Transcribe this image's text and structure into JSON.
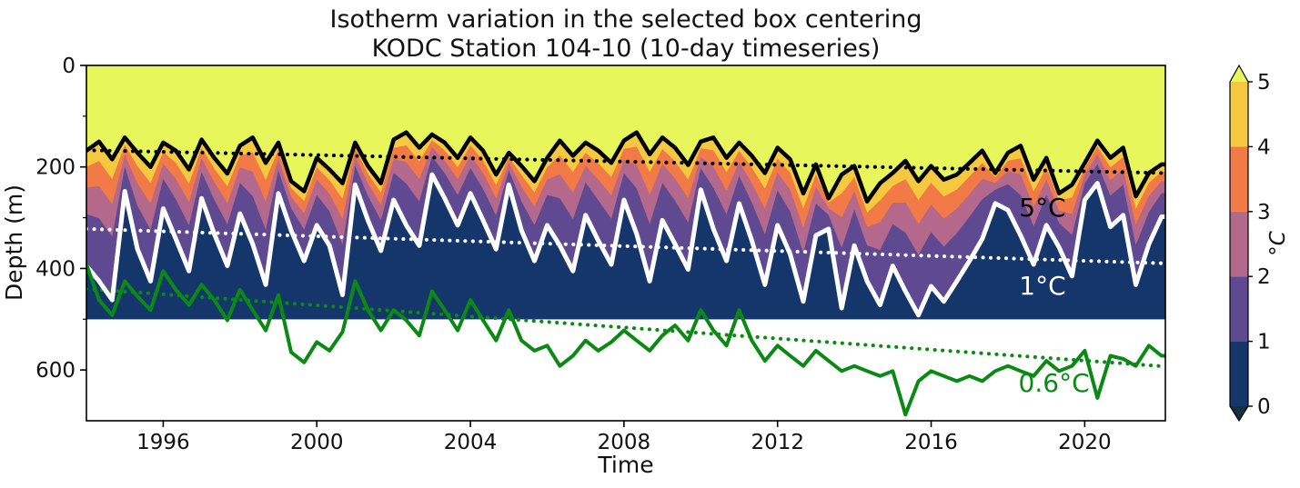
{
  "figure": {
    "background": "#ffffff"
  },
  "chart_data": {
    "type": "area",
    "subtype": "filled-contour-isotherm-timeseries",
    "title": "Isotherm variation in the selected box centering\nKODC Station 104-10 (10-day timeseries)",
    "title_lines": [
      "Isotherm variation in the selected box centering",
      "KODC Station 104-10 (10-day timeseries)"
    ],
    "xlabel": "Time",
    "ylabel": "Depth (m)",
    "xlim": [
      1994.0,
      2022.1
    ],
    "ylim": [
      700,
      0
    ],
    "y_axis_inverted": true,
    "xticks": [
      1996,
      2000,
      2004,
      2008,
      2012,
      2016,
      2020
    ],
    "yticks": [
      0,
      200,
      400,
      600
    ],
    "yticks_minor": [
      100,
      300,
      500
    ],
    "grid": false,
    "data_bottom_depth": 500,
    "colorbar": {
      "unit_label": "°C",
      "ticks": [
        0,
        1,
        2,
        3,
        4,
        5
      ],
      "extend": "both",
      "segment_colors_low_to_high": [
        "#14366a",
        "#5f4a92",
        "#b4688b",
        "#f27a46",
        "#f4c93f"
      ],
      "under_color": "#15303f",
      "over_color": "#e6f65b"
    },
    "colors": {
      "over_5C": "#e6f65b",
      "band_4_5": "#f4c93f",
      "band_3_4": "#f27a46",
      "band_2_3": "#b4688b",
      "band_1_2": "#5f4a92",
      "band_0_1": "#14366a",
      "under_0": "#15303f",
      "iso5_line": "#000000",
      "iso1_line": "#ffffff",
      "iso06_line": "#0a8a14"
    },
    "band_boundary_fractions": {
      "iso4": 0.14,
      "iso3": 0.32,
      "iso2": 0.55
    },
    "series": {
      "x": [
        1994,
        1994.33,
        1994.67,
        1995,
        1995.33,
        1995.67,
        1996,
        1996.33,
        1996.67,
        1997,
        1997.33,
        1997.67,
        1998,
        1998.33,
        1998.67,
        1999,
        1999.33,
        1999.67,
        2000,
        2000.33,
        2000.67,
        2001,
        2001.33,
        2001.67,
        2002,
        2002.33,
        2002.67,
        2003,
        2003.33,
        2003.67,
        2004,
        2004.33,
        2004.67,
        2005,
        2005.33,
        2005.67,
        2006,
        2006.33,
        2006.67,
        2007,
        2007.33,
        2007.67,
        2008,
        2008.33,
        2008.67,
        2009,
        2009.33,
        2009.67,
        2010,
        2010.33,
        2010.67,
        2011,
        2011.33,
        2011.67,
        2012,
        2012.33,
        2012.67,
        2013,
        2013.33,
        2013.67,
        2014,
        2014.33,
        2014.67,
        2015,
        2015.33,
        2015.67,
        2016,
        2016.33,
        2016.67,
        2017,
        2017.33,
        2017.67,
        2018,
        2018.33,
        2018.67,
        2019,
        2019.33,
        2019.67,
        2020,
        2020.33,
        2020.67,
        2021,
        2021.33,
        2021.67,
        2022
      ],
      "iso5": {
        "label": "5°C",
        "depths": [
          168,
          150,
          185,
          142,
          172,
          200,
          152,
          168,
          205,
          146,
          182,
          213,
          158,
          142,
          192,
          152,
          228,
          248,
          182,
          205,
          232,
          152,
          198,
          232,
          146,
          132,
          162,
          136,
          152,
          182,
          142,
          168,
          215,
          172,
          198,
          228,
          182,
          148,
          178,
          152,
          168,
          192,
          148,
          132,
          175,
          142,
          162,
          196,
          150,
          142,
          182,
          152,
          178,
          212,
          162,
          185,
          252,
          195,
          262,
          215,
          198,
          268,
          232,
          212,
          188,
          228,
          198,
          225,
          215,
          192,
          168,
          212,
          172,
          158,
          225,
          182,
          252,
          235,
          192,
          148,
          182,
          162,
          258,
          212,
          195
        ]
      },
      "iso1": {
        "label": "1°C",
        "depths": [
          395,
          425,
          462,
          248,
          362,
          425,
          282,
          342,
          405,
          262,
          332,
          395,
          292,
          352,
          432,
          252,
          325,
          385,
          315,
          355,
          452,
          235,
          305,
          365,
          265,
          315,
          355,
          215,
          262,
          315,
          252,
          305,
          362,
          235,
          325,
          385,
          315,
          355,
          405,
          295,
          345,
          392,
          265,
          332,
          425,
          305,
          352,
          402,
          245,
          322,
          385,
          272,
          345,
          432,
          315,
          372,
          465,
          335,
          322,
          478,
          355,
          425,
          472,
          395,
          445,
          492,
          435,
          465,
          425,
          385,
          342,
          272,
          285,
          335,
          392,
          315,
          358,
          415,
          265,
          232,
          318,
          295,
          432,
          352,
          298
        ]
      },
      "iso06": {
        "label": "0.6°C",
        "depths": [
          392,
          462,
          492,
          425,
          455,
          482,
          405,
          442,
          472,
          432,
          462,
          502,
          442,
          482,
          522,
          452,
          565,
          585,
          545,
          562,
          525,
          425,
          482,
          522,
          482,
          502,
          532,
          445,
          482,
          522,
          462,
          502,
          542,
          482,
          542,
          562,
          552,
          592,
          572,
          542,
          562,
          545,
          522,
          542,
          562,
          532,
          512,
          542,
          482,
          522,
          552,
          482,
          542,
          582,
          552,
          572,
          592,
          562,
          582,
          602,
          592,
          602,
          612,
          602,
          688,
          622,
          602,
          612,
          622,
          612,
          622,
          602,
          592,
          602,
          612,
          582,
          602,
          592,
          562,
          655,
          572,
          578,
          592,
          552,
          572
        ]
      }
    },
    "trend_lines": [
      {
        "series": "iso5",
        "style": "dotted",
        "color": "#000000",
        "x0": 1994.0,
        "depth0": 167,
        "x1": 2022.1,
        "depth1": 212
      },
      {
        "series": "iso1",
        "style": "dotted",
        "color": "#ffffff",
        "x0": 1994.0,
        "depth0": 322,
        "x1": 2022.1,
        "depth1": 390
      },
      {
        "series": "iso06",
        "style": "dotted",
        "color": "#0a8a14",
        "x0": 1994.0,
        "depth0": 440,
        "x1": 2022.1,
        "depth1": 593
      }
    ],
    "annotations": [
      {
        "text": "5°C",
        "year": 2018.9,
        "depth": 279,
        "color": "#000000"
      },
      {
        "text": "1°C",
        "year": 2018.9,
        "depth": 433,
        "color": "#ffffff"
      },
      {
        "text": "0.6°C",
        "year": 2019.2,
        "depth": 625,
        "color": "#0a8a14"
      }
    ]
  }
}
